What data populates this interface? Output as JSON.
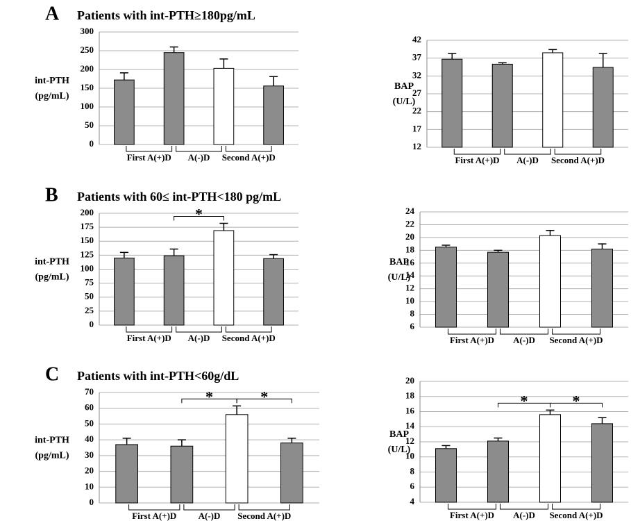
{
  "chart_data": [
    {
      "type": "bar",
      "panel": "A",
      "title": "Patients with int-PTH≥180pg/mL",
      "ylabel": [
        "int-PTH",
        "(pg/mL)"
      ],
      "categories": [
        null,
        null,
        null,
        null
      ],
      "periods": [
        "First A(+)D",
        "A(-)D",
        "Second A(+)D"
      ],
      "values": [
        172,
        245,
        203,
        156
      ],
      "errors": [
        19,
        15,
        25,
        25
      ],
      "colors": [
        "#8c8c8c",
        "#8c8c8c",
        "#ffffff",
        "#8c8c8c"
      ],
      "ylim": [
        0,
        300
      ],
      "yticks": [
        0,
        50,
        100,
        150,
        200,
        250,
        300
      ],
      "grid": true,
      "annotations": []
    },
    {
      "type": "bar",
      "ylabel": [
        "BAP",
        "(U/L)"
      ],
      "categories": [
        null,
        null,
        null,
        null
      ],
      "periods": [
        "First A(+)D",
        "A(-)D",
        "Second A(+)D"
      ],
      "values": [
        36.7,
        35.3,
        38.5,
        34.4
      ],
      "errors": [
        1.6,
        0.4,
        0.9,
        3.9
      ],
      "colors": [
        "#8c8c8c",
        "#8c8c8c",
        "#ffffff",
        "#8c8c8c"
      ],
      "ylim": [
        12,
        42
      ],
      "yticks": [
        12,
        17,
        22,
        27,
        32,
        37,
        42
      ],
      "grid": true,
      "annotations": []
    },
    {
      "type": "bar",
      "panel": "B",
      "title": "Patients with 60≤ int-PTH<180 pg/mL",
      "ylabel": [
        "int-PTH",
        "(pg/mL)"
      ],
      "categories": [
        null,
        null,
        null,
        null
      ],
      "periods": [
        "First A(+)D",
        "A(-)D",
        "Second A(+)D"
      ],
      "values": [
        120,
        124,
        169,
        119
      ],
      "errors": [
        10,
        12,
        13,
        7
      ],
      "colors": [
        "#8c8c8c",
        "#8c8c8c",
        "#ffffff",
        "#8c8c8c"
      ],
      "ylim": [
        0,
        200
      ],
      "yticks": [
        0,
        25,
        50,
        75,
        100,
        125,
        150,
        175,
        200
      ],
      "grid": true,
      "annotations": [
        {
          "text": "*",
          "bars": [
            1,
            2
          ]
        }
      ]
    },
    {
      "type": "bar",
      "ylabel": [
        "BAP",
        "(U/L)"
      ],
      "categories": [
        null,
        null,
        null,
        null
      ],
      "periods": [
        "First A(+)D",
        "A(-)D",
        "Second A(+)D"
      ],
      "values": [
        18.5,
        17.7,
        20.3,
        18.2
      ],
      "errors": [
        0.3,
        0.3,
        0.8,
        0.8
      ],
      "colors": [
        "#8c8c8c",
        "#8c8c8c",
        "#ffffff",
        "#8c8c8c"
      ],
      "ylim": [
        6,
        24
      ],
      "yticks": [
        6,
        8,
        10,
        12,
        14,
        16,
        18,
        20,
        22,
        24
      ],
      "grid": true,
      "annotations": []
    },
    {
      "type": "bar",
      "panel": "C",
      "title": "Patients with int-PTH<60g/dL",
      "ylabel": [
        "int-PTH",
        "(pg/mL)"
      ],
      "categories": [
        null,
        null,
        null,
        null
      ],
      "periods": [
        "First A(+)D",
        "A(-)D",
        "Second A(+)D"
      ],
      "values": [
        37,
        36,
        56,
        38
      ],
      "errors": [
        4,
        4,
        5.5,
        3
      ],
      "colors": [
        "#8c8c8c",
        "#8c8c8c",
        "#ffffff",
        "#8c8c8c"
      ],
      "ylim": [
        0,
        70
      ],
      "yticks": [
        0,
        10,
        20,
        30,
        40,
        50,
        60,
        70
      ],
      "grid": true,
      "annotations": [
        {
          "text": "*",
          "bars": [
            1,
            2
          ]
        },
        {
          "text": "*",
          "bars": [
            2,
            3
          ]
        }
      ]
    },
    {
      "type": "bar",
      "ylabel": [
        "BAP",
        "(U/L)"
      ],
      "categories": [
        null,
        null,
        null,
        null
      ],
      "periods": [
        "First A(+)D",
        "A(-)D",
        "Second A(+)D"
      ],
      "values": [
        11.1,
        12.1,
        15.6,
        14.4
      ],
      "errors": [
        0.4,
        0.4,
        0.6,
        0.8
      ],
      "colors": [
        "#8c8c8c",
        "#8c8c8c",
        "#ffffff",
        "#8c8c8c"
      ],
      "ylim": [
        4,
        20
      ],
      "yticks": [
        4,
        6,
        8,
        10,
        12,
        14,
        16,
        18,
        20
      ],
      "grid": true,
      "annotations": [
        {
          "text": "*",
          "bars": [
            1,
            2
          ]
        },
        {
          "text": "*",
          "bars": [
            2,
            3
          ]
        }
      ]
    }
  ]
}
